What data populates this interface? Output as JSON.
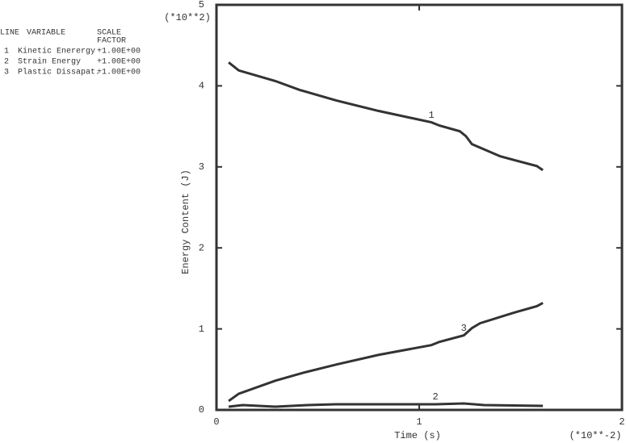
{
  "chart_data": {
    "type": "line",
    "x_label": "Time (s)",
    "y_label": "Energy Content (J)",
    "x_multiplier": "(*10**-2)",
    "y_multiplier": "(*10**2)",
    "legend_headers": {
      "line": "LINE",
      "variable": "VARIABLE",
      "scale": "SCALE",
      "factor": "FACTOR"
    },
    "xlim": [
      0,
      2
    ],
    "xticks": [
      0,
      1,
      2
    ],
    "ylim": [
      0,
      5
    ],
    "yticks": [
      0,
      1,
      2,
      3,
      4,
      5
    ],
    "series": [
      {
        "line_id": "1",
        "name": "Kinetic Enerergy",
        "scale_factor": "+1.00E+00",
        "color": "#333333",
        "x": [
          0.06,
          0.11,
          0.29,
          0.41,
          0.59,
          0.8,
          1.06,
          1.1,
          1.2,
          1.23,
          1.26,
          1.4,
          1.58,
          1.61
        ],
        "values": [
          4.29,
          4.19,
          4.06,
          3.95,
          3.82,
          3.69,
          3.55,
          3.51,
          3.44,
          3.38,
          3.28,
          3.13,
          3.01,
          2.96
        ]
      },
      {
        "line_id": "2",
        "name": "Strain Energy",
        "scale_factor": "+1.00E+00",
        "color": "#333333",
        "x": [
          0.06,
          0.13,
          0.29,
          0.45,
          0.59,
          1.08,
          1.22,
          1.32,
          1.61
        ],
        "values": [
          0.04,
          0.06,
          0.04,
          0.06,
          0.07,
          0.07,
          0.08,
          0.06,
          0.05
        ]
      },
      {
        "line_id": "3",
        "name": "Plastic Dissapat.",
        "scale_factor": "+1.00E+00",
        "color": "#333333",
        "x": [
          0.06,
          0.11,
          0.29,
          0.43,
          0.59,
          0.8,
          1.06,
          1.1,
          1.22,
          1.26,
          1.3,
          1.48,
          1.58,
          1.61
        ],
        "values": [
          0.11,
          0.2,
          0.36,
          0.46,
          0.56,
          0.68,
          0.8,
          0.84,
          0.92,
          1.01,
          1.07,
          1.21,
          1.28,
          1.32
        ]
      }
    ]
  }
}
